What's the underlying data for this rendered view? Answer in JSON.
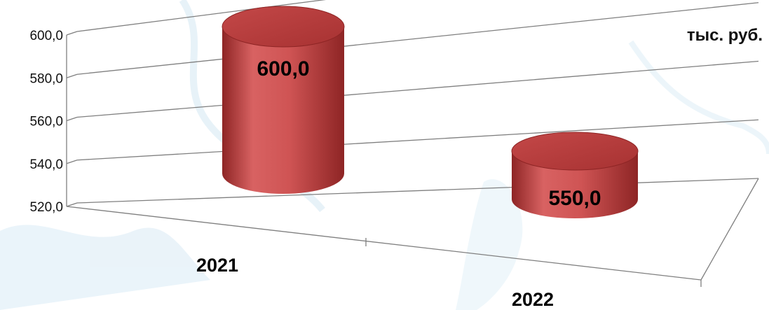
{
  "unit_label": "тыс. руб.",
  "colors": {
    "bar_body": "#c74848",
    "bar_dark": "#8e2525",
    "bar_light": "#e57a7a",
    "bar_top": "#b83c3c",
    "gridline": "#7f7f7f",
    "map_water": "#cfe6f3"
  },
  "chart_data": {
    "type": "bar",
    "style": "3d-cylinder",
    "categories": [
      "2021",
      "2022"
    ],
    "values": [
      600.0,
      550.0
    ],
    "value_labels": [
      "600,0",
      "550,0"
    ],
    "y_ticks": [
      "520,0",
      "540,0",
      "560,0",
      "580,0",
      "600,0"
    ],
    "ylim": [
      520,
      600
    ],
    "grid": true,
    "legend": "none",
    "title": "",
    "xlabel": "",
    "ylabel": ""
  }
}
